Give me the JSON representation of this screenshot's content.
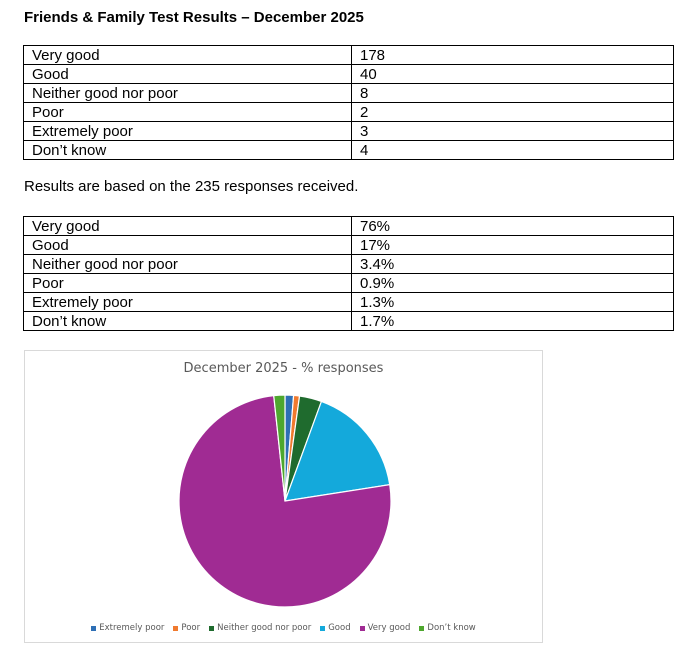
{
  "document": {
    "title": "Friends & Family Test Results – December 2025",
    "note": "Results are based on the 235 responses received."
  },
  "counts_table": [
    {
      "label": "Very good",
      "value": "178"
    },
    {
      "label": "Good",
      "value": "40"
    },
    {
      "label": "Neither good nor poor",
      "value": "8"
    },
    {
      "label": "Poor",
      "value": "2"
    },
    {
      "label": "Extremely poor",
      "value": "3"
    },
    {
      "label": "Don’t know",
      "value": "4"
    }
  ],
  "percent_table": [
    {
      "label": "Very good",
      "value": "76%"
    },
    {
      "label": "Good",
      "value": "17%"
    },
    {
      "label": "Neither good nor poor",
      "value": "3.4%"
    },
    {
      "label": "Poor",
      "value": "0.9%"
    },
    {
      "label": "Extremely poor",
      "value": "1.3%"
    },
    {
      "label": "Don’t know",
      "value": "1.7%"
    }
  ],
  "chart_data": {
    "type": "pie",
    "title": "December 2025 - % responses",
    "categories": [
      "Extremely poor",
      "Poor",
      "Neither good nor poor",
      "Good",
      "Very good",
      "Don’t know"
    ],
    "values": [
      1.3,
      0.9,
      3.4,
      17,
      76,
      1.7
    ],
    "colors": [
      "#2e6fb5",
      "#f07a2f",
      "#1f6b2e",
      "#14a9db",
      "#a02b93",
      "#4ea72e"
    ],
    "legend_position": "bottom"
  }
}
